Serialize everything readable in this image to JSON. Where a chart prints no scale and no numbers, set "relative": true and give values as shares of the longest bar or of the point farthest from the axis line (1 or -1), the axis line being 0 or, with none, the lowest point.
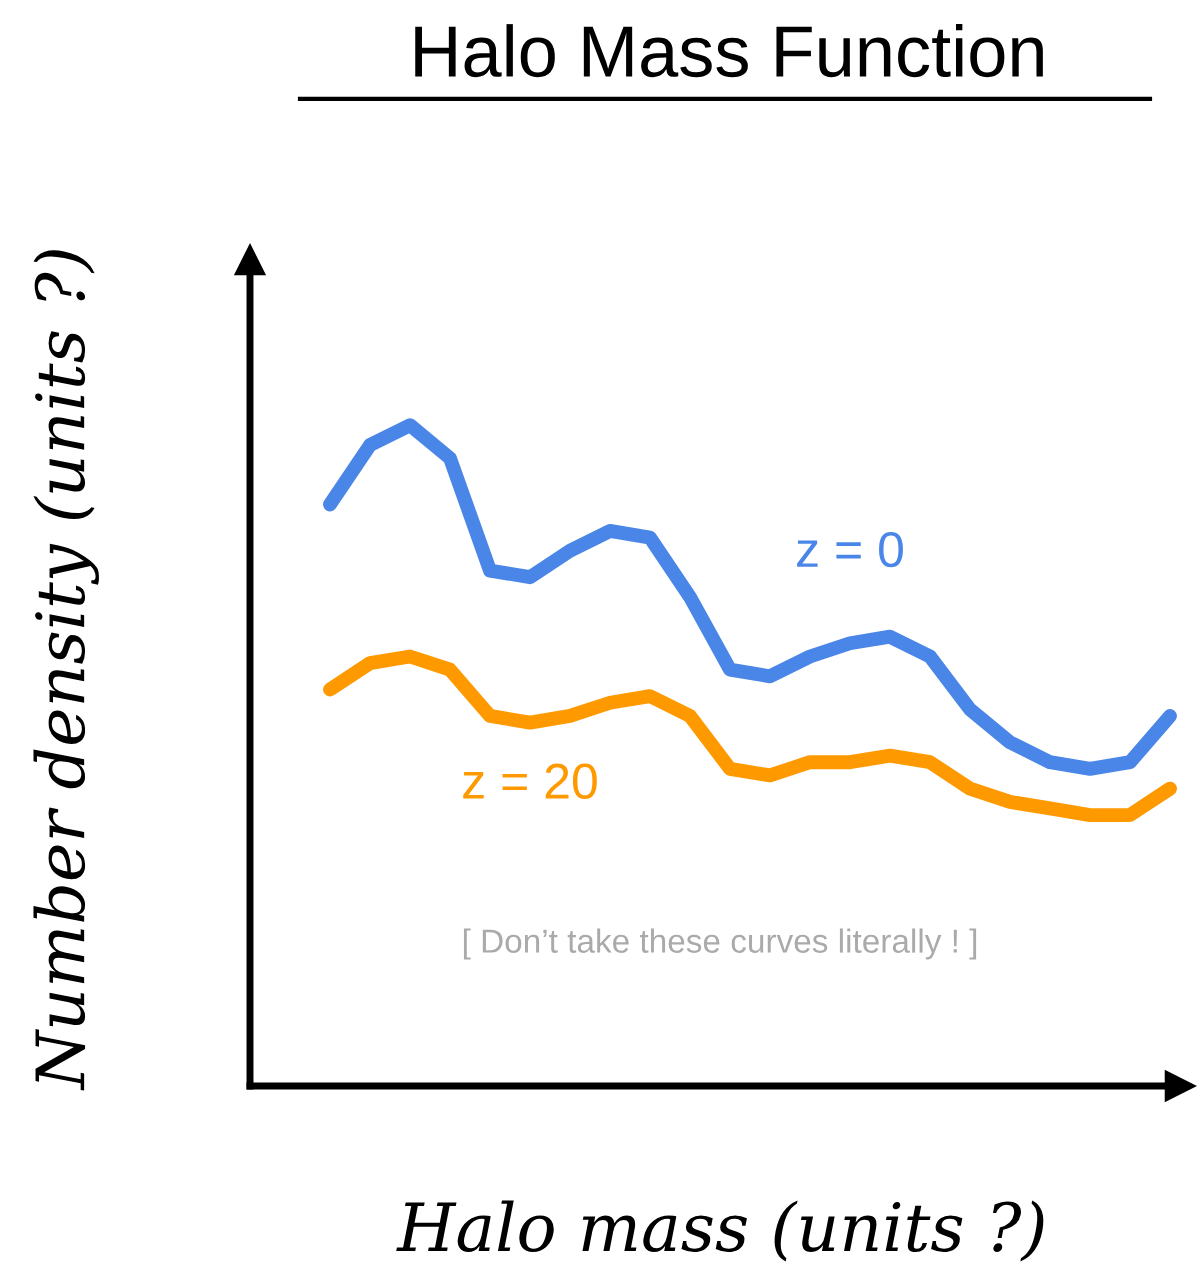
{
  "chart_data": {
    "type": "line",
    "title": "Halo Mass Function",
    "xlabel": "Halo mass (units ?)",
    "ylabel": "Number density (units ?)",
    "relative": true,
    "categories": [
      null,
      null,
      null,
      null,
      null,
      null,
      null,
      null,
      null,
      null,
      null,
      null,
      null,
      null,
      null,
      null,
      null,
      null,
      null,
      null,
      null,
      null
    ],
    "series": [
      {
        "name": "z = 0",
        "color": "#4a86e8",
        "values": [
          0.88,
          0.97,
          1,
          0.95,
          0.78,
          0.77,
          0.81,
          0.84,
          0.83,
          0.74,
          0.63,
          0.62,
          0.65,
          0.67,
          0.68,
          0.65,
          0.57,
          0.52,
          0.49,
          0.48,
          0.49,
          0.56
        ]
      },
      {
        "name": "z = 20",
        "color": "#ff9900",
        "values": [
          0.6,
          0.64,
          0.65,
          0.63,
          0.56,
          0.55,
          0.56,
          0.58,
          0.59,
          0.56,
          0.48,
          0.47,
          0.49,
          0.49,
          0.5,
          0.49,
          0.45,
          0.43,
          0.42,
          0.41,
          0.41,
          0.45
        ]
      }
    ],
    "annotations": [
      "[ Don’t take these curves literally ! ]"
    ]
  }
}
